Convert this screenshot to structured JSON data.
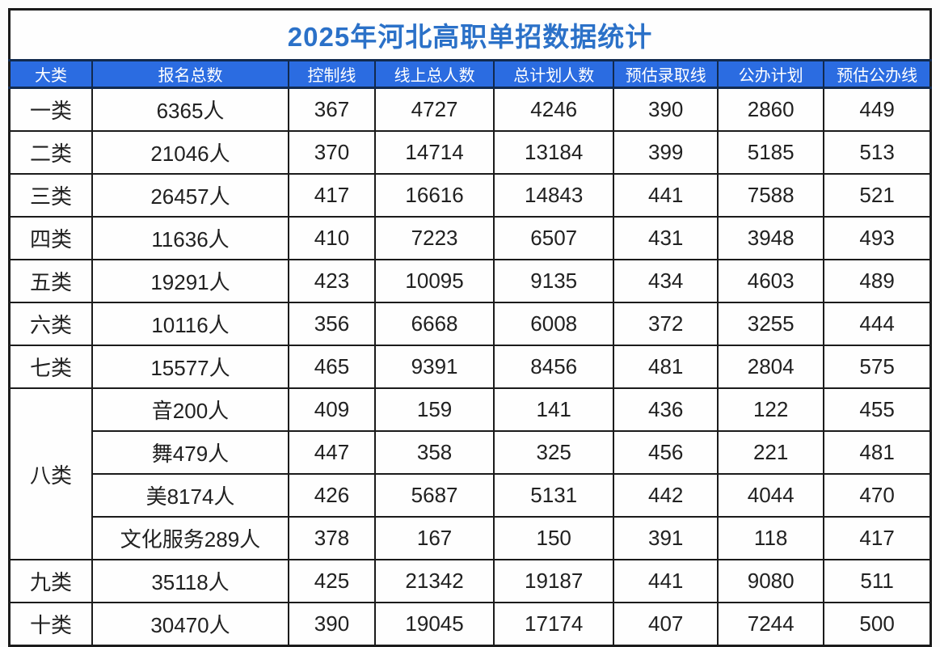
{
  "colors": {
    "header_bg": "#2b6ce1",
    "header_text": "#ffffff",
    "title_text": "#2b71c8",
    "border": "#1b1b1b",
    "header_border": "#122a4e",
    "cell_text": "#212121"
  },
  "chart_data": {
    "type": "table",
    "title": "2025年河北高职单招数据统计",
    "columns": [
      "大类",
      "报名总数",
      "控制线",
      "线上总人数",
      "总计划人数",
      "预估录取线",
      "公办计划",
      "预估公办线"
    ],
    "groups": [
      {
        "category": "一类",
        "rows": [
          [
            "6365人",
            "367",
            "4727",
            "4246",
            "390",
            "2860",
            "449"
          ]
        ]
      },
      {
        "category": "二类",
        "rows": [
          [
            "21046人",
            "370",
            "14714",
            "13184",
            "399",
            "5185",
            "513"
          ]
        ]
      },
      {
        "category": "三类",
        "rows": [
          [
            "26457人",
            "417",
            "16616",
            "14843",
            "441",
            "7588",
            "521"
          ]
        ]
      },
      {
        "category": "四类",
        "rows": [
          [
            "11636人",
            "410",
            "7223",
            "6507",
            "431",
            "3948",
            "493"
          ]
        ]
      },
      {
        "category": "五类",
        "rows": [
          [
            "19291人",
            "423",
            "10095",
            "9135",
            "434",
            "4603",
            "489"
          ]
        ]
      },
      {
        "category": "六类",
        "rows": [
          [
            "10116人",
            "356",
            "6668",
            "6008",
            "372",
            "3255",
            "444"
          ]
        ]
      },
      {
        "category": "七类",
        "rows": [
          [
            "15577人",
            "465",
            "9391",
            "8456",
            "481",
            "2804",
            "575"
          ]
        ]
      },
      {
        "category": "八类",
        "rows": [
          [
            "音200人",
            "409",
            "159",
            "141",
            "436",
            "122",
            "455"
          ],
          [
            "舞479人",
            "447",
            "358",
            "325",
            "456",
            "221",
            "481"
          ],
          [
            "美8174人",
            "426",
            "5687",
            "5131",
            "442",
            "4044",
            "470"
          ],
          [
            "文化服务289人",
            "378",
            "167",
            "150",
            "391",
            "118",
            "417"
          ]
        ]
      },
      {
        "category": "九类",
        "rows": [
          [
            "35118人",
            "425",
            "21342",
            "19187",
            "441",
            "9080",
            "511"
          ]
        ]
      },
      {
        "category": "十类",
        "rows": [
          [
            "30470人",
            "390",
            "19045",
            "17174",
            "407",
            "7244",
            "500"
          ]
        ]
      }
    ],
    "layout": {
      "column_width_percent": [
        9.0,
        21.3,
        9.4,
        12.9,
        13.0,
        11.3,
        11.5,
        11.6
      ],
      "merged_category_rowspan": {
        "八类": 4
      }
    }
  }
}
